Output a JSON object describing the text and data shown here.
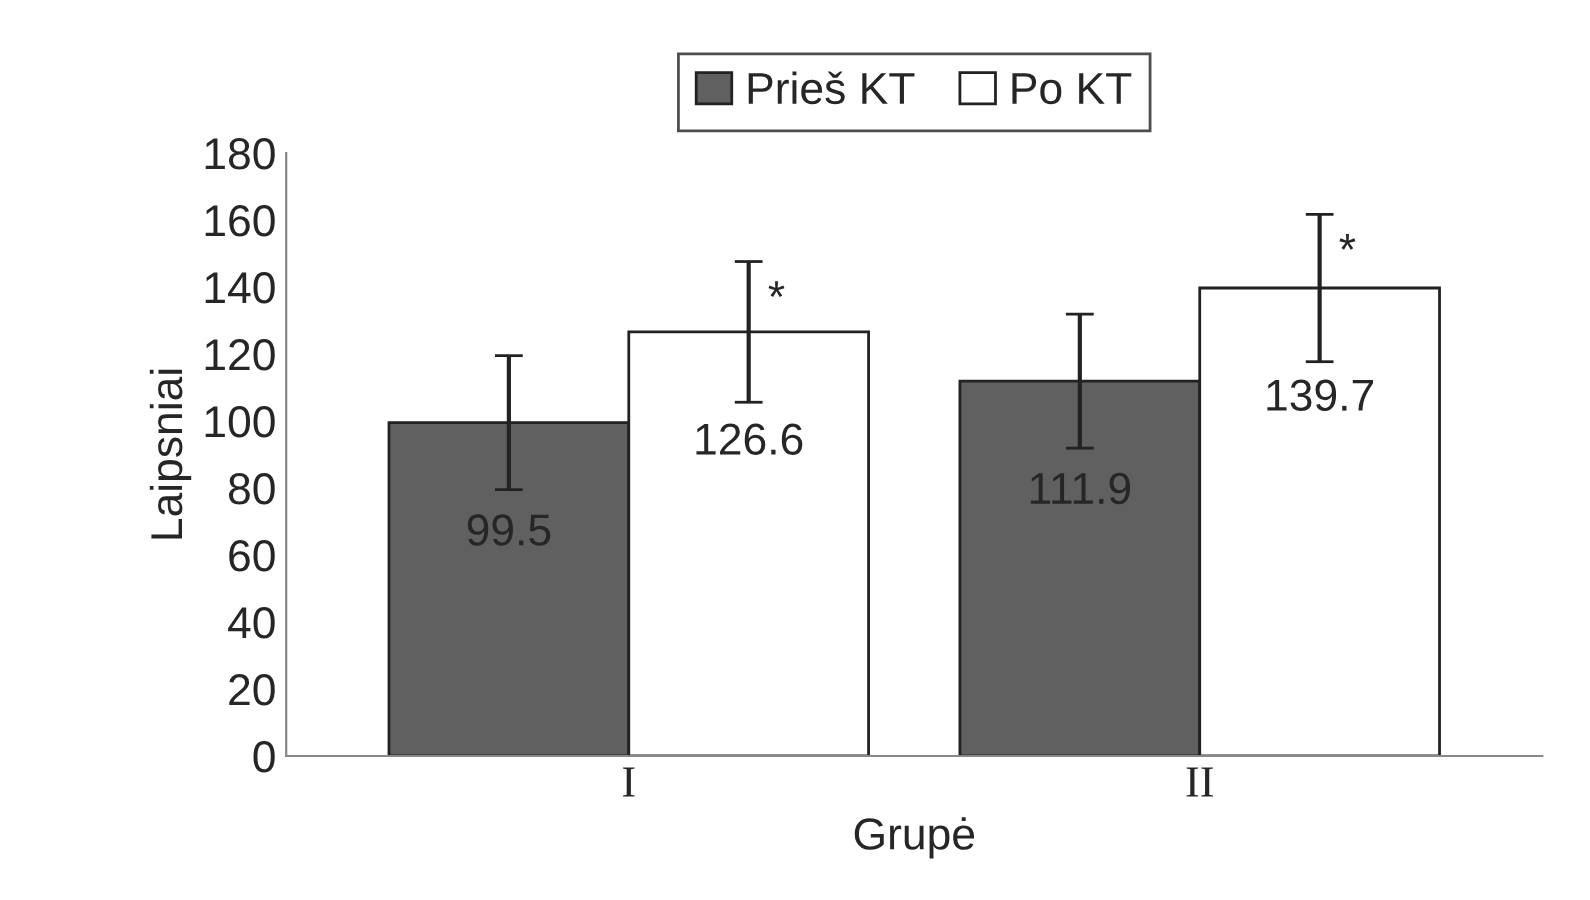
{
  "chart_data": {
    "type": "bar",
    "xlabel": "Grupė",
    "ylabel": "Laipsniai",
    "categories": [
      "I",
      "II"
    ],
    "series": [
      {
        "name": "Prieš KT",
        "color": "#606060",
        "values": [
          99.5,
          111.9
        ],
        "errors": [
          20,
          20
        ]
      },
      {
        "name": "Po KT",
        "color": "#ffffff",
        "values": [
          126.6,
          139.7
        ],
        "errors": [
          21,
          22
        ]
      }
    ],
    "ylim": [
      0,
      180
    ],
    "yticks": [
      0,
      20,
      40,
      60,
      80,
      100,
      120,
      140,
      160,
      180
    ],
    "data_labels": true,
    "legend": "top",
    "grid": false,
    "annotations": [
      "*",
      "*"
    ]
  }
}
